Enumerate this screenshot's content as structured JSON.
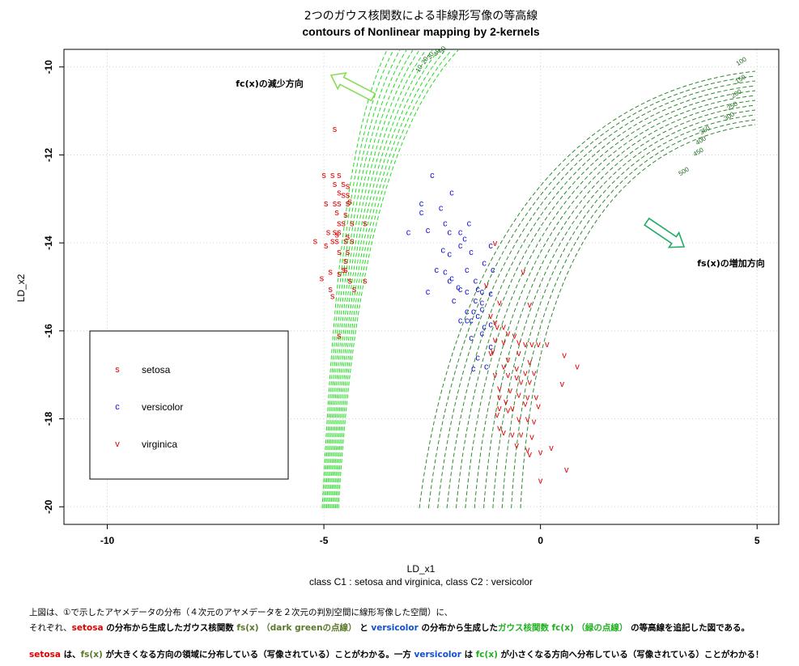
{
  "chart_data": {
    "type": "scatter",
    "title": "2つのガウス核関数による非線形写像の等高線",
    "subtitle": "contours of Nonlinear mapping by 2-kernels",
    "xlabel": "LD_x1",
    "ylabel": "LD_x2",
    "sub_xlabel": "class C1 : setosa and virginica, class C2 : versicolor",
    "xlim": [
      -11,
      5.5
    ],
    "ylim": [
      -20.4,
      -9.6
    ],
    "x_ticks": [
      -10,
      -5,
      0,
      5
    ],
    "x_tick_labels": [
      "-10",
      "-5",
      "0",
      "5"
    ],
    "y_ticks": [
      -10,
      -12,
      -14,
      -16,
      -18,
      -20
    ],
    "y_tick_labels": [
      "-10",
      "-12",
      "-14",
      "-16",
      "-18",
      "-20"
    ],
    "grid": true,
    "legend_position": "bottom-left",
    "legend": [
      {
        "symbol": "s",
        "label": "setosa",
        "color": "#e00000"
      },
      {
        "symbol": "c",
        "label": "versicolor",
        "color": "#1010d0"
      },
      {
        "symbol": "v",
        "label": "virginica",
        "color": "#e00000"
      }
    ],
    "series": [
      {
        "symbol": "s",
        "color": "#e00000",
        "points": [
          [
            -4.75,
            -11.4
          ],
          [
            -5.0,
            -12.45
          ],
          [
            -4.8,
            -12.45
          ],
          [
            -4.65,
            -12.45
          ],
          [
            -4.75,
            -12.65
          ],
          [
            -4.55,
            -12.65
          ],
          [
            -4.45,
            -12.7
          ],
          [
            -4.65,
            -12.85
          ],
          [
            -4.45,
            -12.9
          ],
          [
            -4.55,
            -12.9
          ],
          [
            -4.4,
            -13.05
          ],
          [
            -4.95,
            -13.1
          ],
          [
            -4.75,
            -13.1
          ],
          [
            -4.65,
            -13.1
          ],
          [
            -4.45,
            -13.1
          ],
          [
            -4.7,
            -13.3
          ],
          [
            -4.5,
            -13.35
          ],
          [
            -4.65,
            -13.55
          ],
          [
            -4.55,
            -13.55
          ],
          [
            -4.35,
            -13.55
          ],
          [
            -4.05,
            -13.55
          ],
          [
            -4.9,
            -13.75
          ],
          [
            -4.75,
            -13.75
          ],
          [
            -4.65,
            -13.75
          ],
          [
            -4.7,
            -13.8
          ],
          [
            -4.45,
            -13.85
          ],
          [
            -5.2,
            -13.95
          ],
          [
            -4.8,
            -13.95
          ],
          [
            -4.7,
            -13.95
          ],
          [
            -4.5,
            -13.95
          ],
          [
            -4.35,
            -13.95
          ],
          [
            -4.95,
            -14.05
          ],
          [
            -4.45,
            -14.2
          ],
          [
            -4.65,
            -14.2
          ],
          [
            -4.5,
            -14.4
          ],
          [
            -4.55,
            -14.6
          ],
          [
            -4.5,
            -14.6
          ],
          [
            -4.85,
            -14.65
          ],
          [
            -4.65,
            -14.7
          ],
          [
            -5.05,
            -14.8
          ],
          [
            -4.4,
            -14.85
          ],
          [
            -4.05,
            -14.85
          ],
          [
            -4.85,
            -15.05
          ],
          [
            -4.3,
            -15.05
          ],
          [
            -4.8,
            -15.2
          ],
          [
            -4.65,
            -16.1
          ]
        ]
      },
      {
        "symbol": "c",
        "color": "#1010d0",
        "points": [
          [
            -2.5,
            -12.45
          ],
          [
            -2.05,
            -12.85
          ],
          [
            -2.75,
            -13.1
          ],
          [
            -2.3,
            -13.2
          ],
          [
            -2.75,
            -13.3
          ],
          [
            -1.65,
            -13.55
          ],
          [
            -2.2,
            -13.55
          ],
          [
            -3.05,
            -13.75
          ],
          [
            -2.6,
            -13.7
          ],
          [
            -2.1,
            -13.75
          ],
          [
            -1.85,
            -13.75
          ],
          [
            -1.75,
            -13.9
          ],
          [
            -1.85,
            -14.05
          ],
          [
            -1.15,
            -14.05
          ],
          [
            -1.6,
            -14.2
          ],
          [
            -2.25,
            -14.15
          ],
          [
            -2.1,
            -14.25
          ],
          [
            -1.3,
            -14.45
          ],
          [
            -2.4,
            -14.6
          ],
          [
            -1.1,
            -14.6
          ],
          [
            -1.7,
            -14.6
          ],
          [
            -2.2,
            -14.65
          ],
          [
            -2.05,
            -14.8
          ],
          [
            -2.1,
            -14.85
          ],
          [
            -1.5,
            -14.85
          ],
          [
            -1.9,
            -15.0
          ],
          [
            -1.85,
            -15.05
          ],
          [
            -2.6,
            -15.1
          ],
          [
            -1.7,
            -15.1
          ],
          [
            -1.45,
            -15.05
          ],
          [
            -1.35,
            -15.1
          ],
          [
            -1.15,
            -15.15
          ],
          [
            -2.0,
            -15.3
          ],
          [
            -1.5,
            -15.3
          ],
          [
            -1.35,
            -15.35
          ],
          [
            -1.7,
            -15.55
          ],
          [
            -1.55,
            -15.55
          ],
          [
            -1.45,
            -15.65
          ],
          [
            -1.35,
            -15.5
          ],
          [
            -1.7,
            -15.75
          ],
          [
            -1.85,
            -15.75
          ],
          [
            -1.6,
            -15.75
          ],
          [
            -1.3,
            -15.9
          ],
          [
            -1.15,
            -15.85
          ],
          [
            -1.35,
            -16.05
          ],
          [
            -1.6,
            -16.15
          ],
          [
            -1.45,
            -16.6
          ],
          [
            -1.25,
            -16.8
          ],
          [
            -1.55,
            -16.85
          ],
          [
            -1.15,
            -16.35
          ]
        ]
      },
      {
        "symbol": "v",
        "color": "#e00000",
        "points": [
          [
            -1.05,
            -14.0
          ],
          [
            -0.4,
            -14.65
          ],
          [
            -1.25,
            -14.95
          ],
          [
            -0.95,
            -15.35
          ],
          [
            -0.25,
            -15.4
          ],
          [
            -1.15,
            -15.65
          ],
          [
            -1.05,
            -15.8
          ],
          [
            -1.0,
            -15.9
          ],
          [
            -0.85,
            -15.9
          ],
          [
            -0.75,
            -16.05
          ],
          [
            -0.6,
            -16.1
          ],
          [
            -1.05,
            -16.2
          ],
          [
            -0.5,
            -16.25
          ],
          [
            -0.85,
            -16.25
          ],
          [
            -0.2,
            -16.3
          ],
          [
            -0.35,
            -16.3
          ],
          [
            -0.05,
            -16.3
          ],
          [
            0.15,
            -16.3
          ],
          [
            -1.1,
            -16.45
          ],
          [
            -1.15,
            -16.5
          ],
          [
            -0.5,
            -16.5
          ],
          [
            -0.75,
            -16.65
          ],
          [
            -0.25,
            -16.7
          ],
          [
            0.55,
            -16.55
          ],
          [
            -0.85,
            -16.8
          ],
          [
            -0.55,
            -16.85
          ],
          [
            -0.35,
            -16.95
          ],
          [
            -0.15,
            -16.95
          ],
          [
            0.85,
            -16.8
          ],
          [
            -1.05,
            -17.0
          ],
          [
            -0.75,
            -17.0
          ],
          [
            -0.55,
            -17.05
          ],
          [
            -0.45,
            -17.15
          ],
          [
            -0.25,
            -17.15
          ],
          [
            0.5,
            -17.2
          ],
          [
            -0.95,
            -17.3
          ],
          [
            -0.7,
            -17.35
          ],
          [
            -0.5,
            -17.45
          ],
          [
            -0.3,
            -17.5
          ],
          [
            -0.1,
            -17.5
          ],
          [
            -0.95,
            -17.5
          ],
          [
            -0.8,
            -17.6
          ],
          [
            -0.65,
            -17.75
          ],
          [
            -0.35,
            -17.65
          ],
          [
            -0.05,
            -17.7
          ],
          [
            -0.95,
            -17.75
          ],
          [
            -0.75,
            -17.8
          ],
          [
            -1.0,
            -17.9
          ],
          [
            -0.5,
            -18.0
          ],
          [
            -0.3,
            -18.0
          ],
          [
            -0.85,
            -18.3
          ],
          [
            -0.15,
            -18.05
          ],
          [
            -0.45,
            -18.35
          ],
          [
            -0.65,
            -18.35
          ],
          [
            -0.95,
            -18.2
          ],
          [
            -0.2,
            -18.4
          ],
          [
            -0.55,
            -18.6
          ],
          [
            -0.3,
            -18.7
          ],
          [
            -0.25,
            -18.8
          ],
          [
            0.0,
            -18.75
          ],
          [
            0.25,
            -18.65
          ],
          [
            0.6,
            -19.15
          ],
          [
            0.0,
            -19.4
          ]
        ]
      }
    ],
    "contours": [
      {
        "name": "fs(x)",
        "color": "#2e8b2e",
        "style": "dashed",
        "levels": [
          "100",
          "150",
          "200",
          "250",
          "300",
          "350",
          "400",
          "450",
          "500"
        ]
      },
      {
        "name": "fc(x)",
        "color": "#22dd22",
        "style": "dashed",
        "levels": [
          "10",
          "20",
          "30",
          "40",
          "50"
        ]
      }
    ],
    "annotations": [
      {
        "text": "fc(x)の減少方向"
      },
      {
        "text": "fs(x)の増加方向"
      }
    ]
  },
  "caption": {
    "line1": "上図は、①で示したアヤメデータの分布（４次元のアヤメデータを２次元の判別空間に線形写像した空間）に、",
    "line2_parts": [
      {
        "text": "それぞれ、",
        "cls": ""
      },
      {
        "text": "setosa",
        "cls": "red"
      },
      {
        "text": " の分布から生成したガウス核関数 ",
        "cls": "bold"
      },
      {
        "text": "fs(x) （dark greenの点線）",
        "cls": "darkgreen"
      },
      {
        "text": " と ",
        "cls": "bold"
      },
      {
        "text": "versicolor",
        "cls": "blue"
      },
      {
        "text": " の分布から生成した",
        "cls": "bold"
      },
      {
        "text": "ガウス核関数 fc(x) （緑の点線）",
        "cls": "green"
      },
      {
        "text": " の等高線を追記した図である。",
        "cls": "bold"
      }
    ],
    "line3_parts": [
      {
        "text": "setosa",
        "cls": "red"
      },
      {
        "text": " は、",
        "cls": "bold"
      },
      {
        "text": "fs(x)",
        "cls": "darkgreen"
      },
      {
        "text": " が大きくなる方向の領域に分布している（写像されている）ことがわかる。一方 ",
        "cls": "bold"
      },
      {
        "text": "versicolor",
        "cls": "blue"
      },
      {
        "text": " は ",
        "cls": "bold"
      },
      {
        "text": "fc(x)",
        "cls": "green"
      },
      {
        "text": " が小さくなる方向へ分布している（写像されている）ことがわかる！",
        "cls": "bold"
      }
    ]
  }
}
